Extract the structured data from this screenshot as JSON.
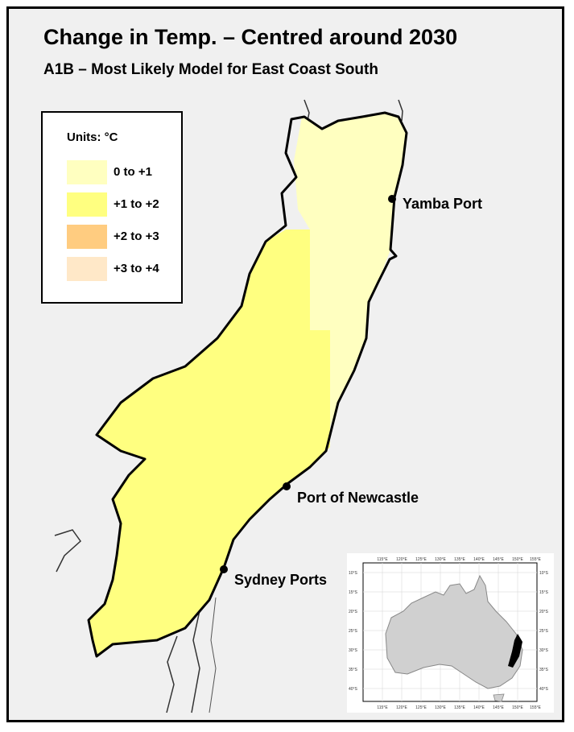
{
  "title": "Change in Temp. – Centred around 2030",
  "subtitle": "A1B – Most Likely Model for East Coast South",
  "legend": {
    "units": "Units: °C",
    "items": [
      {
        "label": "0 to +1",
        "color": "#ffffc0"
      },
      {
        "label": "+1 to +2",
        "color": "#ffff80"
      },
      {
        "label": "+2 to +3",
        "color": "#ffcc80"
      },
      {
        "label": "+3 to +4",
        "color": "#ffe8c8"
      }
    ]
  },
  "ports": [
    {
      "name": "Yamba Port"
    },
    {
      "name": "Port of Newcastle"
    },
    {
      "name": "Sydney Ports"
    }
  ],
  "inset": {
    "top_ticks": [
      "115°E",
      "120°E",
      "125°E",
      "130°E",
      "135°E",
      "140°E",
      "145°E",
      "150°E",
      "155°E"
    ],
    "lat_ticks": [
      "10°S",
      "15°S",
      "20°S",
      "25°S",
      "30°S",
      "35°S",
      "40°S"
    ]
  },
  "colors": {
    "zone_low": "#ffffc0",
    "zone_mid": "#ffff80",
    "land_inset": "#d0d0d0",
    "region_highlight": "#000000",
    "background": "#f0f0f0"
  }
}
